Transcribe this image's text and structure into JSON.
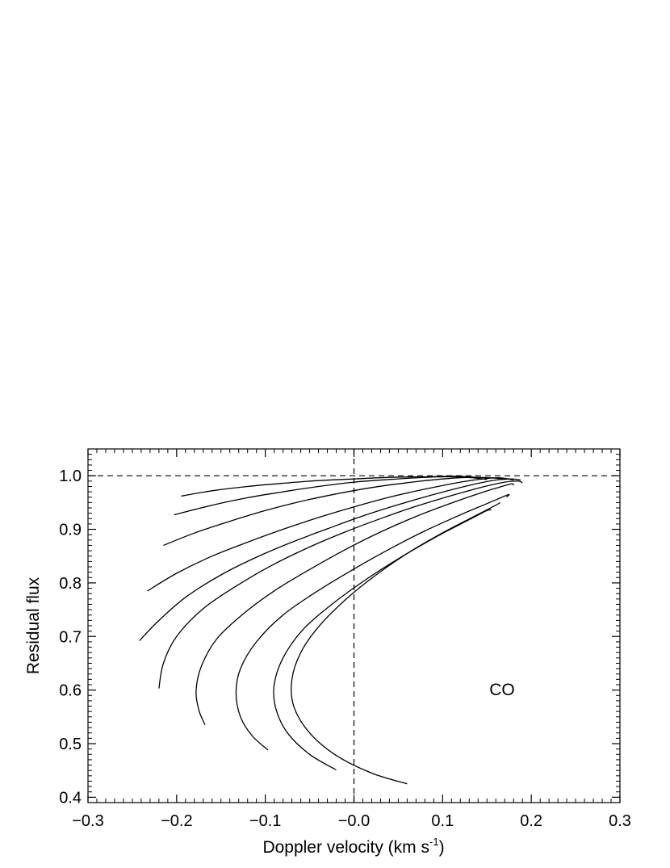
{
  "chart_data": {
    "type": "line",
    "title": "",
    "xlabel": "Doppler velocity (km s",
    "xlabel_sup": "-1",
    "xlabel_end": ")",
    "ylabel": "Residual flux",
    "xlim": [
      -0.3,
      0.3
    ],
    "ylim": [
      0.39,
      1.05
    ],
    "x_ticks": [
      -0.3,
      -0.2,
      -0.1,
      0.0,
      0.1,
      0.2,
      0.3
    ],
    "x_tick_labels": [
      "−0.3",
      "−0.2",
      "−0.1",
      "−0.0",
      "0.1",
      "0.2",
      "0.3"
    ],
    "y_ticks": [
      0.4,
      0.5,
      0.6,
      0.7,
      0.8,
      0.9,
      1.0
    ],
    "y_tick_labels": [
      "0.4",
      "0.5",
      "0.6",
      "0.7",
      "0.8",
      "0.9",
      "1.0"
    ],
    "reference_lines": {
      "x": 0.0,
      "y": 1.0,
      "style": "dashed"
    },
    "annotation": "CO",
    "grid": false,
    "line_color": "#000000",
    "series": [
      {
        "points": [
          [
            -0.195,
            0.962
          ],
          [
            -0.16,
            0.972
          ],
          [
            -0.12,
            0.98
          ],
          [
            -0.08,
            0.986
          ],
          [
            -0.04,
            0.991
          ],
          [
            0.0,
            0.994
          ],
          [
            0.04,
            0.997
          ],
          [
            0.08,
            0.998
          ],
          [
            0.11,
            0.999
          ],
          [
            0.13,
            0.998
          ],
          [
            0.14,
            0.997
          ]
        ]
      },
      {
        "points": [
          [
            -0.203,
            0.927
          ],
          [
            -0.16,
            0.945
          ],
          [
            -0.12,
            0.959
          ],
          [
            -0.08,
            0.97
          ],
          [
            -0.04,
            0.98
          ],
          [
            0.0,
            0.988
          ],
          [
            0.04,
            0.993
          ],
          [
            0.08,
            0.997
          ],
          [
            0.11,
            0.998
          ],
          [
            0.135,
            0.996
          ],
          [
            0.15,
            0.993
          ]
        ]
      },
      {
        "points": [
          [
            -0.215,
            0.87
          ],
          [
            -0.18,
            0.893
          ],
          [
            -0.14,
            0.915
          ],
          [
            -0.1,
            0.935
          ],
          [
            -0.06,
            0.952
          ],
          [
            -0.02,
            0.966
          ],
          [
            0.02,
            0.978
          ],
          [
            0.06,
            0.987
          ],
          [
            0.1,
            0.994
          ],
          [
            0.13,
            0.997
          ],
          [
            0.155,
            0.996
          ],
          [
            0.17,
            0.994
          ]
        ]
      },
      {
        "points": [
          [
            -0.233,
            0.785
          ],
          [
            -0.2,
            0.818
          ],
          [
            -0.16,
            0.85
          ],
          [
            -0.12,
            0.876
          ],
          [
            -0.08,
            0.9
          ],
          [
            -0.04,
            0.922
          ],
          [
            0.0,
            0.942
          ],
          [
            0.04,
            0.96
          ],
          [
            0.08,
            0.975
          ],
          [
            0.12,
            0.988
          ],
          [
            0.15,
            0.995
          ],
          [
            0.165,
            0.996
          ],
          [
            0.18,
            0.992
          ]
        ]
      },
      {
        "points": [
          [
            -0.242,
            0.692
          ],
          [
            -0.22,
            0.73
          ],
          [
            -0.19,
            0.773
          ],
          [
            -0.15,
            0.815
          ],
          [
            -0.11,
            0.848
          ],
          [
            -0.07,
            0.876
          ],
          [
            -0.03,
            0.901
          ],
          [
            0.01,
            0.925
          ],
          [
            0.05,
            0.946
          ],
          [
            0.09,
            0.965
          ],
          [
            0.13,
            0.982
          ],
          [
            0.16,
            0.992
          ],
          [
            0.178,
            0.994
          ],
          [
            0.188,
            0.992
          ]
        ]
      },
      {
        "points": [
          [
            -0.22,
            0.603
          ],
          [
            -0.215,
            0.65
          ],
          [
            -0.2,
            0.7
          ],
          [
            -0.17,
            0.752
          ],
          [
            -0.13,
            0.797
          ],
          [
            -0.09,
            0.835
          ],
          [
            -0.05,
            0.867
          ],
          [
            -0.01,
            0.895
          ],
          [
            0.03,
            0.92
          ],
          [
            0.07,
            0.943
          ],
          [
            0.11,
            0.963
          ],
          [
            0.145,
            0.979
          ],
          [
            0.17,
            0.988
          ],
          [
            0.185,
            0.99
          ],
          [
            0.19,
            0.987
          ]
        ]
      },
      {
        "points": [
          [
            -0.168,
            0.535
          ],
          [
            -0.175,
            0.563
          ],
          [
            -0.178,
            0.6
          ],
          [
            -0.172,
            0.645
          ],
          [
            -0.155,
            0.695
          ],
          [
            -0.125,
            0.742
          ],
          [
            -0.09,
            0.785
          ],
          [
            -0.05,
            0.825
          ],
          [
            -0.01,
            0.862
          ],
          [
            0.03,
            0.895
          ],
          [
            0.07,
            0.924
          ],
          [
            0.11,
            0.949
          ],
          [
            0.145,
            0.969
          ],
          [
            0.165,
            0.979
          ],
          [
            0.178,
            0.985
          ],
          [
            0.18,
            0.982
          ]
        ]
      },
      {
        "points": [
          [
            -0.097,
            0.488
          ],
          [
            -0.115,
            0.515
          ],
          [
            -0.128,
            0.55
          ],
          [
            -0.133,
            0.595
          ],
          [
            -0.128,
            0.64
          ],
          [
            -0.11,
            0.69
          ],
          [
            -0.08,
            0.74
          ],
          [
            -0.04,
            0.786
          ],
          [
            0.0,
            0.826
          ],
          [
            0.04,
            0.863
          ],
          [
            0.08,
            0.897
          ],
          [
            0.12,
            0.927
          ],
          [
            0.15,
            0.948
          ],
          [
            0.17,
            0.962
          ],
          [
            0.175,
            0.965
          ],
          [
            0.172,
            0.96
          ]
        ]
      },
      {
        "points": [
          [
            -0.02,
            0.451
          ],
          [
            -0.05,
            0.48
          ],
          [
            -0.075,
            0.52
          ],
          [
            -0.088,
            0.565
          ],
          [
            -0.09,
            0.61
          ],
          [
            -0.08,
            0.66
          ],
          [
            -0.058,
            0.712
          ],
          [
            -0.025,
            0.76
          ],
          [
            0.015,
            0.808
          ],
          [
            0.055,
            0.85
          ],
          [
            0.095,
            0.888
          ],
          [
            0.13,
            0.918
          ],
          [
            0.15,
            0.935
          ],
          [
            0.155,
            0.936
          ]
        ]
      },
      {
        "points": [
          [
            0.06,
            0.425
          ],
          [
            0.02,
            0.445
          ],
          [
            -0.02,
            0.478
          ],
          [
            -0.05,
            0.52
          ],
          [
            -0.068,
            0.57
          ],
          [
            -0.07,
            0.62
          ],
          [
            -0.06,
            0.67
          ],
          [
            -0.04,
            0.718
          ],
          [
            -0.01,
            0.768
          ],
          [
            0.025,
            0.815
          ],
          [
            0.065,
            0.86
          ],
          [
            0.105,
            0.898
          ],
          [
            0.14,
            0.928
          ],
          [
            0.16,
            0.945
          ],
          [
            0.165,
            0.95
          ]
        ]
      }
    ]
  }
}
